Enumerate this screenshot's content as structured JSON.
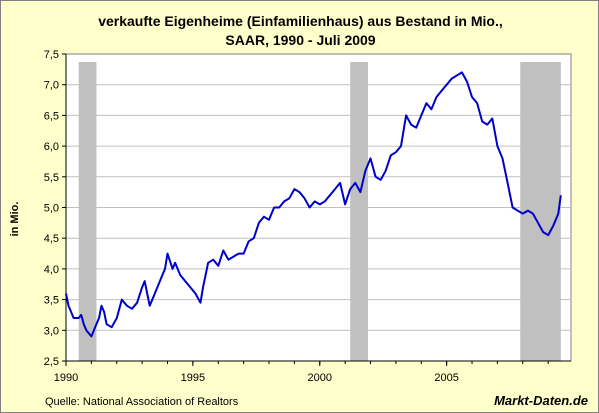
{
  "chart_data": {
    "type": "line",
    "title": "verkaufte Eigenheime (Einfamilienhaus) aus Bestand in Mio.,",
    "subtitle": "SAAR, 1990 - Juli 2009",
    "xlabel": "",
    "ylabel": "in Mio.",
    "xlim": [
      1990.0,
      2009.9
    ],
    "ylim": [
      2.5,
      7.5
    ],
    "y_ticks": [
      "2,5",
      "3,0",
      "3,5",
      "4,0",
      "4,5",
      "5,0",
      "5,5",
      "6,0",
      "6,5",
      "7,0",
      "7,5"
    ],
    "x_ticks": [
      "1990",
      "1995",
      "2000",
      "2005"
    ],
    "grid": "horizontal",
    "recessions": [
      [
        1990.5,
        1991.2
      ],
      [
        2001.2,
        2001.9
      ],
      [
        2007.9,
        2009.5
      ]
    ],
    "series": [
      {
        "color": "#0000cc",
        "x": [
          1990.0,
          1990.1,
          1990.2,
          1990.3,
          1990.5,
          1990.6,
          1990.7,
          1990.8,
          1991.0,
          1991.1,
          1991.3,
          1991.4,
          1991.5,
          1991.6,
          1991.8,
          1992.0,
          1992.2,
          1992.4,
          1992.6,
          1992.8,
          1993.0,
          1993.1,
          1993.2,
          1993.3,
          1993.4,
          1993.6,
          1993.8,
          1993.9,
          1994.0,
          1994.2,
          1994.3,
          1994.5,
          1994.7,
          1994.9,
          1995.1,
          1995.3,
          1995.4,
          1995.5,
          1995.6,
          1995.8,
          1996.0,
          1996.2,
          1996.4,
          1996.6,
          1996.8,
          1997.0,
          1997.2,
          1997.4,
          1997.6,
          1997.8,
          1998.0,
          1998.2,
          1998.4,
          1998.6,
          1998.8,
          1999.0,
          1999.2,
          1999.4,
          1999.6,
          1999.8,
          2000.0,
          2000.2,
          2000.4,
          2000.6,
          2000.8,
          2001.0,
          2001.2,
          2001.4,
          2001.6,
          2001.8,
          2002.0,
          2002.2,
          2002.4,
          2002.6,
          2002.8,
          2003.0,
          2003.2,
          2003.4,
          2003.6,
          2003.8,
          2004.0,
          2004.2,
          2004.4,
          2004.6,
          2004.8,
          2005.0,
          2005.2,
          2005.4,
          2005.6,
          2005.8,
          2006.0,
          2006.2,
          2006.4,
          2006.6,
          2006.8,
          2007.0,
          2007.2,
          2007.4,
          2007.6,
          2007.8,
          2008.0,
          2008.2,
          2008.4,
          2008.6,
          2008.8,
          2009.0,
          2009.2,
          2009.4,
          2009.5
        ],
        "y": [
          3.6,
          3.4,
          3.3,
          3.2,
          3.2,
          3.25,
          3.1,
          3.0,
          2.9,
          3.0,
          3.2,
          3.4,
          3.3,
          3.1,
          3.05,
          3.2,
          3.5,
          3.4,
          3.35,
          3.45,
          3.7,
          3.8,
          3.6,
          3.4,
          3.5,
          3.7,
          3.9,
          4.0,
          4.25,
          4.0,
          4.1,
          3.9,
          3.8,
          3.7,
          3.6,
          3.45,
          3.7,
          3.9,
          4.1,
          4.15,
          4.05,
          4.3,
          4.15,
          4.2,
          4.25,
          4.25,
          4.45,
          4.5,
          4.75,
          4.85,
          4.8,
          5.0,
          5.0,
          5.1,
          5.15,
          5.3,
          5.25,
          5.15,
          5.0,
          5.1,
          5.05,
          5.1,
          5.2,
          5.3,
          5.4,
          5.05,
          5.3,
          5.4,
          5.25,
          5.6,
          5.8,
          5.5,
          5.45,
          5.6,
          5.85,
          5.9,
          6.0,
          6.5,
          6.35,
          6.3,
          6.5,
          6.7,
          6.6,
          6.8,
          6.9,
          7.0,
          7.1,
          7.15,
          7.2,
          7.05,
          6.8,
          6.7,
          6.4,
          6.35,
          6.45,
          6.0,
          5.8,
          5.4,
          5.0,
          4.95,
          4.9,
          4.95,
          4.9,
          4.75,
          4.6,
          4.55,
          4.7,
          4.9,
          5.2
        ]
      }
    ]
  },
  "footer": {
    "source": "Quelle: National Association of Realtors",
    "brand": "Markt-Daten.de"
  }
}
